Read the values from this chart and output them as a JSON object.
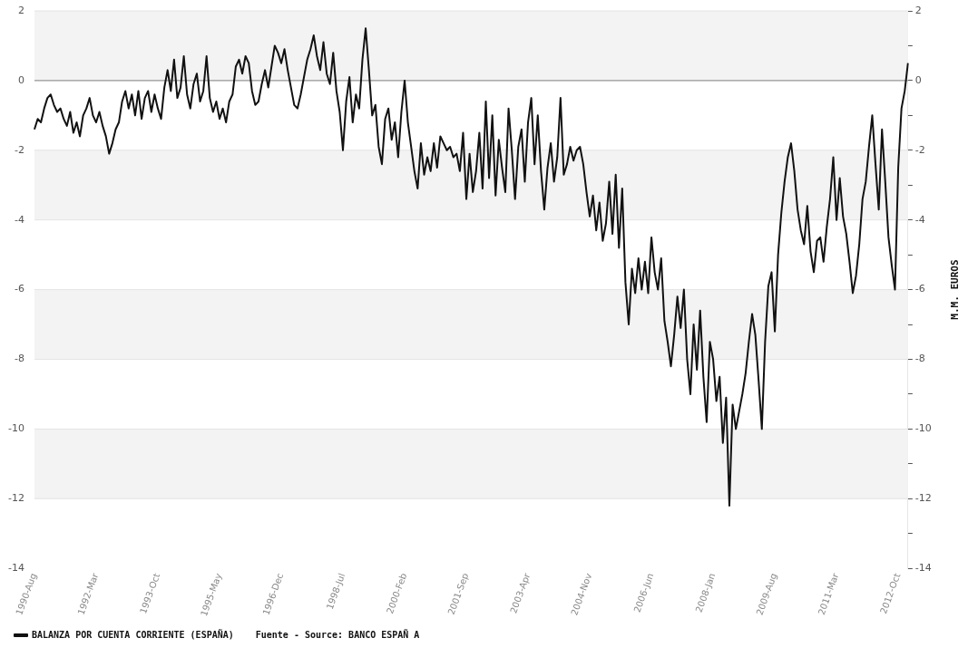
{
  "chart_data": {
    "type": "line",
    "ylabel": "M.M. EUROS",
    "annotations": [
      "Fuente - Source: BANCO ESPAÑ A"
    ],
    "categories": [
      "1990-Aug",
      null,
      null,
      null,
      null,
      null,
      null,
      null,
      null,
      null,
      null,
      null,
      null,
      null,
      null,
      null,
      null,
      null,
      null,
      "1992-Mar",
      null,
      null,
      null,
      null,
      null,
      null,
      null,
      null,
      null,
      null,
      null,
      null,
      null,
      null,
      null,
      null,
      null,
      null,
      "1993-Oct",
      null,
      null,
      null,
      null,
      null,
      null,
      null,
      null,
      null,
      null,
      null,
      null,
      null,
      null,
      null,
      null,
      null,
      null,
      "1995-May",
      null,
      null,
      null,
      null,
      null,
      null,
      null,
      null,
      null,
      null,
      null,
      null,
      null,
      null,
      null,
      null,
      null,
      null,
      "1996-Dec",
      null,
      null,
      null,
      null,
      null,
      null,
      null,
      null,
      null,
      null,
      null,
      null,
      null,
      null,
      null,
      null,
      null,
      null,
      "1998-Jul",
      null,
      null,
      null,
      null,
      null,
      null,
      null,
      null,
      null,
      null,
      null,
      null,
      null,
      null,
      null,
      null,
      null,
      null,
      "2000-Feb",
      null,
      null,
      null,
      null,
      null,
      null,
      null,
      null,
      null,
      null,
      null,
      null,
      null,
      null,
      null,
      null,
      null,
      null,
      "2001-Sep",
      null,
      null,
      null,
      null,
      null,
      null,
      null,
      null,
      null,
      null,
      null,
      null,
      null,
      null,
      null,
      null,
      null,
      null,
      "2003-Apr",
      null,
      null,
      null,
      null,
      null,
      null,
      null,
      null,
      null,
      null,
      null,
      null,
      null,
      null,
      null,
      null,
      null,
      null,
      "2004-Nov",
      null,
      null,
      null,
      null,
      null,
      null,
      null,
      null,
      null,
      null,
      null,
      null,
      null,
      null,
      null,
      null,
      null,
      null,
      "2006-Jun",
      null,
      null,
      null,
      null,
      null,
      null,
      null,
      null,
      null,
      null,
      null,
      null,
      null,
      null,
      null,
      null,
      null,
      null,
      "2008-Jan",
      null,
      null,
      null,
      null,
      null,
      null,
      null,
      null,
      null,
      null,
      null,
      null,
      null,
      null,
      null,
      null,
      null,
      null,
      "2009-Aug",
      null,
      null,
      null,
      null,
      null,
      null,
      null,
      null,
      null,
      null,
      null,
      null,
      null,
      null,
      null,
      null,
      null,
      null,
      "2011-Mar",
      null,
      null,
      null,
      null,
      null,
      null,
      null,
      null,
      null,
      null,
      null,
      null,
      null,
      null,
      null,
      null,
      null,
      null,
      "2012-Oct",
      null,
      null,
      null
    ],
    "series": [
      {
        "name": "BALANZA POR CUENTA CORRIENTE (ESPAÑA)",
        "color": "#111111",
        "values": [
          -1.4,
          -1.1,
          -1.2,
          -0.8,
          -0.5,
          -0.4,
          -0.7,
          -0.9,
          -0.8,
          -1.1,
          -1.3,
          -0.9,
          -1.5,
          -1.2,
          -1.6,
          -1.0,
          -0.8,
          -0.5,
          -1.0,
          -1.2,
          -0.9,
          -1.3,
          -1.6,
          -2.1,
          -1.8,
          -1.4,
          -1.2,
          -0.6,
          -0.3,
          -0.8,
          -0.4,
          -1.0,
          -0.3,
          -1.1,
          -0.5,
          -0.3,
          -0.9,
          -0.4,
          -0.8,
          -1.1,
          -0.2,
          0.3,
          -0.3,
          0.6,
          -0.5,
          -0.2,
          0.7,
          -0.4,
          -0.8,
          -0.1,
          0.2,
          -0.6,
          -0.3,
          0.7,
          -0.5,
          -0.9,
          -0.6,
          -1.1,
          -0.8,
          -1.2,
          -0.6,
          -0.4,
          0.4,
          0.6,
          0.2,
          0.7,
          0.5,
          -0.3,
          -0.7,
          -0.6,
          -0.1,
          0.3,
          -0.2,
          0.4,
          1.0,
          0.8,
          0.5,
          0.9,
          0.3,
          -0.2,
          -0.7,
          -0.8,
          -0.4,
          0.1,
          0.6,
          0.9,
          1.3,
          0.7,
          0.3,
          1.1,
          0.2,
          -0.1,
          0.8,
          -0.3,
          -0.9,
          -2.0,
          -0.6,
          0.1,
          -1.2,
          -0.4,
          -0.8,
          0.6,
          1.5,
          0.3,
          -1.0,
          -0.7,
          -1.9,
          -2.4,
          -1.1,
          -0.8,
          -1.7,
          -1.2,
          -2.2,
          -0.9,
          0.0,
          -1.2,
          -1.9,
          -2.6,
          -3.1,
          -1.8,
          -2.7,
          -2.2,
          -2.6,
          -1.8,
          -2.5,
          -1.6,
          -1.8,
          -2.0,
          -1.9,
          -2.2,
          -2.1,
          -2.6,
          -1.5,
          -3.4,
          -2.1,
          -3.2,
          -2.6,
          -1.5,
          -3.1,
          -0.6,
          -2.8,
          -1.0,
          -3.3,
          -1.7,
          -2.5,
          -3.2,
          -0.8,
          -2.0,
          -3.4,
          -1.9,
          -1.4,
          -2.9,
          -1.2,
          -0.5,
          -2.4,
          -1.0,
          -2.6,
          -3.7,
          -2.5,
          -1.8,
          -2.9,
          -2.2,
          -0.5,
          -2.7,
          -2.4,
          -1.9,
          -2.3,
          -2.0,
          -1.9,
          -2.4,
          -3.2,
          -3.9,
          -3.3,
          -4.3,
          -3.5,
          -4.6,
          -4.1,
          -2.9,
          -4.4,
          -2.7,
          -4.8,
          -3.1,
          -5.8,
          -7.0,
          -5.4,
          -6.1,
          -5.1,
          -6.0,
          -5.2,
          -6.1,
          -4.5,
          -5.5,
          -6.0,
          -5.1,
          -6.9,
          -7.5,
          -8.2,
          -7.3,
          -6.2,
          -7.1,
          -6.0,
          -8.0,
          -9.0,
          -7.0,
          -8.3,
          -6.6,
          -8.5,
          -9.8,
          -7.5,
          -8.0,
          -9.2,
          -8.5,
          -10.4,
          -9.1,
          -12.2,
          -9.3,
          -10.0,
          -9.5,
          -9.0,
          -8.4,
          -7.5,
          -6.7,
          -7.3,
          -8.6,
          -10.0,
          -7.5,
          -5.9,
          -5.5,
          -7.2,
          -5.0,
          -3.8,
          -2.9,
          -2.2,
          -1.8,
          -2.6,
          -3.7,
          -4.3,
          -4.7,
          -3.6,
          -4.9,
          -5.5,
          -4.6,
          -4.5,
          -5.2,
          -4.2,
          -3.4,
          -2.2,
          -4.0,
          -2.8,
          -3.9,
          -4.4,
          -5.2,
          -6.1,
          -5.6,
          -4.7,
          -3.4,
          -2.9,
          -1.9,
          -1.0,
          -2.4,
          -3.7,
          -1.4,
          -2.9,
          -4.5,
          -5.3,
          -6.0,
          -2.5,
          -0.8,
          -0.3,
          0.5
        ]
      }
    ],
    "ylim": [
      -14,
      2
    ],
    "yticks": [
      -14,
      -12,
      -10,
      -8,
      -6,
      -4,
      -2,
      0,
      2
    ],
    "y2lim": [
      -14,
      2
    ],
    "y2ticks": [
      {
        "value": -14,
        "label": "-14"
      },
      {
        "value": -13,
        "label": null
      },
      {
        "value": -12,
        "label": "-12"
      },
      {
        "value": -11,
        "label": null
      },
      {
        "value": -10,
        "label": "-10"
      },
      {
        "value": -9,
        "label": null
      },
      {
        "value": -8,
        "label": "-8"
      },
      {
        "value": -7,
        "label": null
      },
      {
        "value": -6,
        "label": "-6"
      },
      {
        "value": -5,
        "label": null
      },
      {
        "value": -4,
        "label": "-4"
      },
      {
        "value": -3,
        "label": null
      },
      {
        "value": -2,
        "label": "-2"
      },
      {
        "value": -1,
        "label": null
      },
      {
        "value": 0,
        "label": "0"
      },
      {
        "value": 1,
        "label": null
      },
      {
        "value": 2,
        "label": "2"
      }
    ],
    "ref_lines": [
      {
        "axis": "y",
        "value": 0,
        "color": "#888888"
      }
    ],
    "grid": "y",
    "legend": "bottom left",
    "marker": "none",
    "line_style": "solid"
  }
}
